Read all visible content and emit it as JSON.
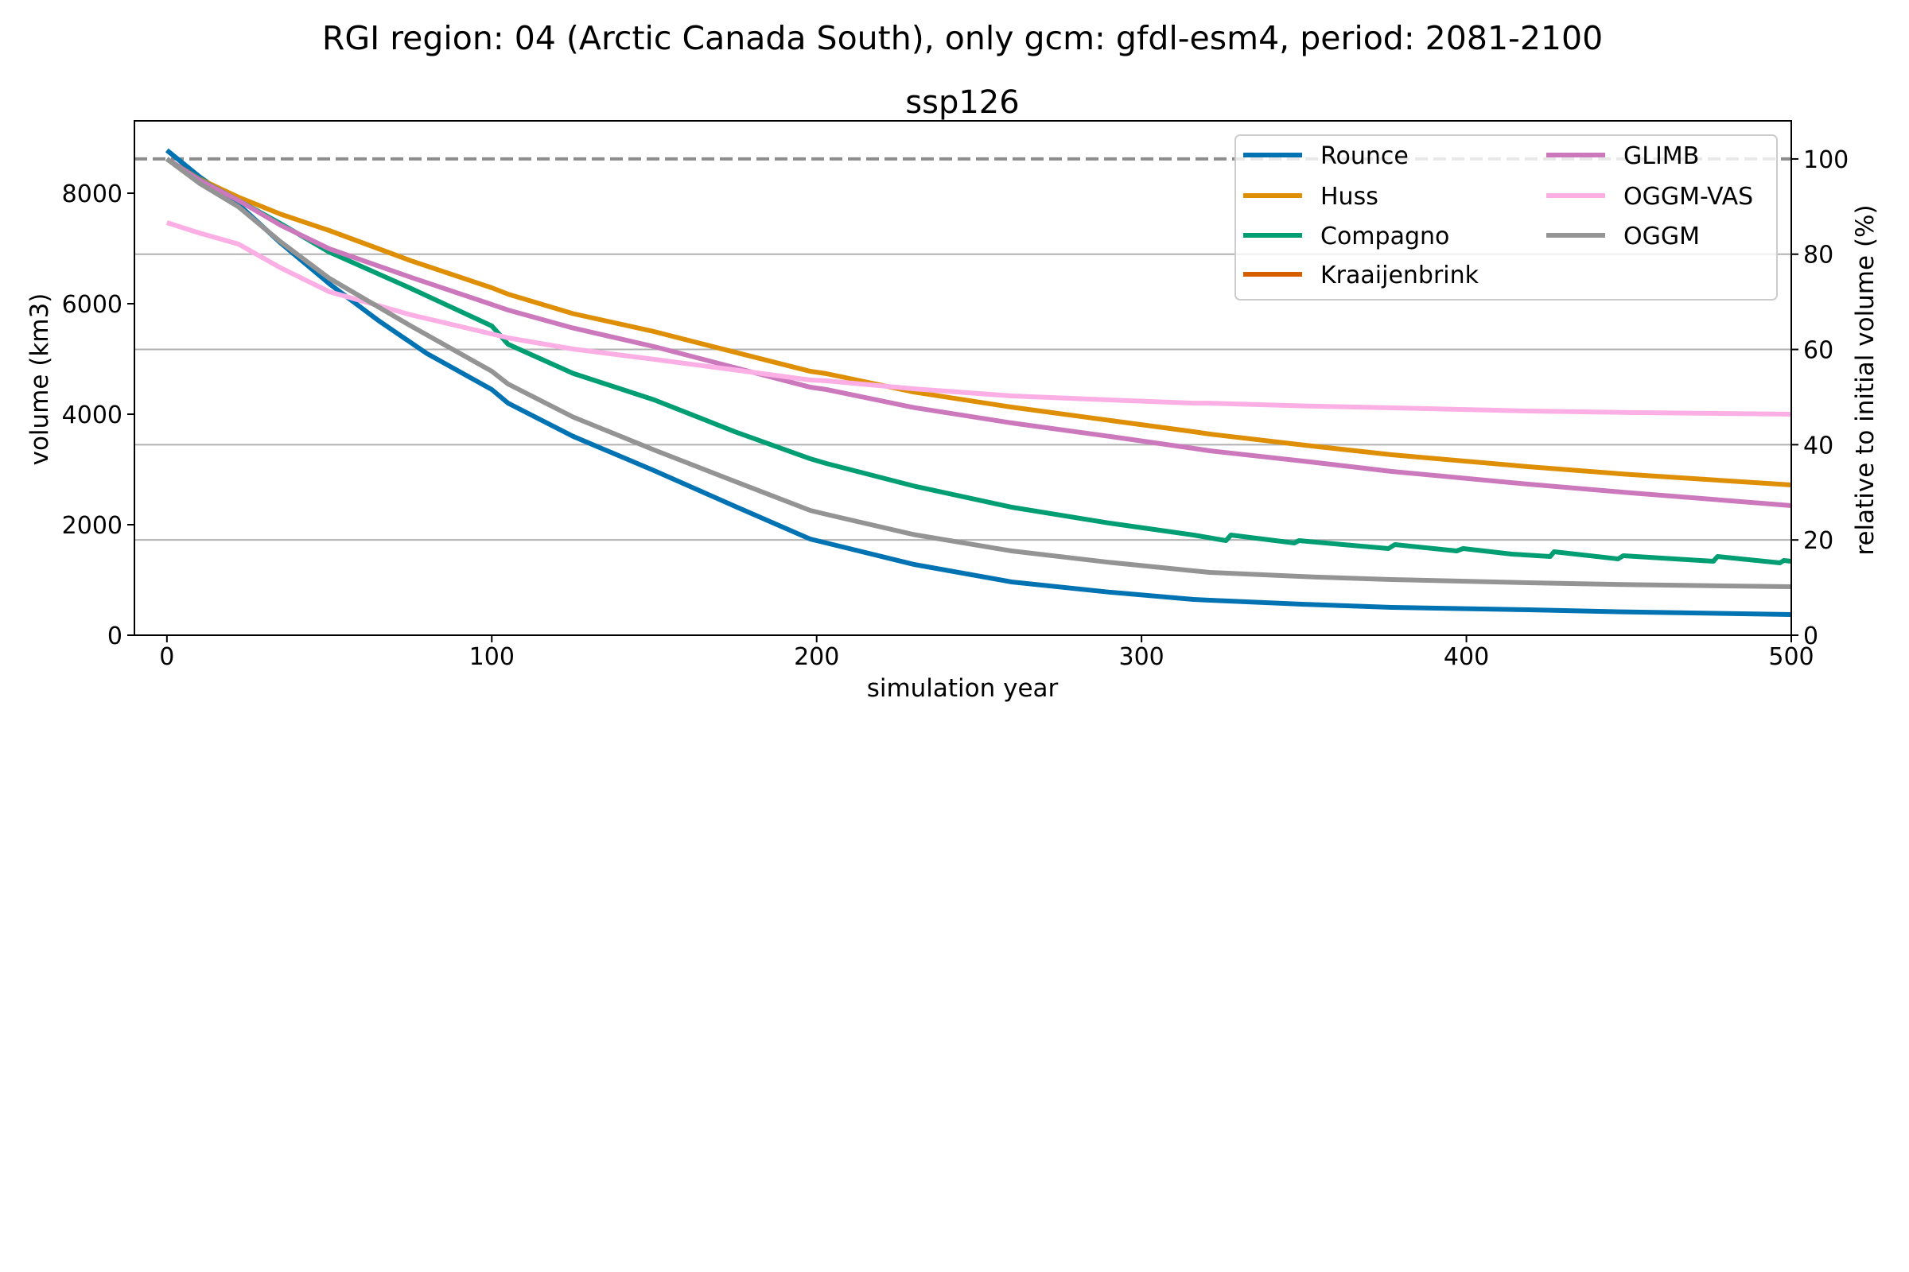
{
  "figure": {
    "suptitle": "RGI region: 04 (Arctic Canada South), only gcm: gfdl-esm4, period: 2081-2100",
    "background": "#ffffff"
  },
  "chart_data": {
    "type": "line",
    "title": "ssp126",
    "xlabel": "simulation year",
    "ylabel": "volume (km3)",
    "ylabel_right": "relative to initial volume (%)",
    "xlim": [
      -10,
      500
    ],
    "ylim": [
      0,
      9310
    ],
    "ylim_right": [
      0,
      108
    ],
    "initial_volume": 8620,
    "x_ticks": [
      0,
      100,
      200,
      300,
      400,
      500
    ],
    "x_tick_labels": [
      "0",
      "100",
      "200",
      "300",
      "400",
      "500"
    ],
    "y_ticks": [
      0,
      2000,
      4000,
      6000,
      8000
    ],
    "y_tick_labels": [
      "0",
      "2000",
      "4000",
      "6000",
      "8000"
    ],
    "y_right_ticks": [
      0,
      20,
      40,
      60,
      80,
      100
    ],
    "y_right_tick_labels": [
      "0",
      "20",
      "40",
      "60",
      "80",
      "100"
    ],
    "grid": "horizontal at right-axis ticks",
    "reference_line": {
      "value_percent": 100,
      "style": "dashed",
      "color": "#8c8c8c"
    },
    "legend_position": "upper-right",
    "legend_columns": 2,
    "series": [
      {
        "name": "Rounce",
        "color": "#0173b2",
        "x": [
          0,
          10,
          22,
          35,
          50,
          65,
          80,
          100,
          105,
          125,
          150,
          175,
          198,
          203,
          230,
          260,
          290,
          316,
          321,
          350,
          377,
          419,
          450,
          500
        ],
        "y": [
          8777,
          8300,
          7798,
          7100,
          6360,
          5700,
          5100,
          4446,
          4201,
          3600,
          2978,
          2330,
          1741,
          1669,
          1280,
          964,
          780,
          647,
          633,
          560,
          504,
          460,
          420,
          374
        ]
      },
      {
        "name": "Huss",
        "color": "#de8f05",
        "x": [
          0,
          10,
          22,
          35,
          50,
          75,
          100,
          105,
          125,
          150,
          175,
          198,
          203,
          230,
          260,
          290,
          316,
          321,
          350,
          377,
          419,
          450,
          500
        ],
        "y": [
          8620,
          8260,
          7928,
          7620,
          7324,
          6780,
          6288,
          6173,
          5820,
          5496,
          5120,
          4777,
          4734,
          4400,
          4129,
          3890,
          3683,
          3640,
          3440,
          3266,
          3050,
          2910,
          2719
        ]
      },
      {
        "name": "Compagno",
        "color": "#029e73",
        "x": [
          0,
          10,
          22,
          35,
          50,
          75,
          100,
          105,
          125,
          150,
          175,
          198,
          203,
          230,
          260,
          290,
          316,
          326,
          327.5,
          347,
          348.5,
          362,
          376,
          378,
          397,
          399,
          414,
          425.8,
          427,
          446.7,
          448.3,
          476,
          477.3,
          496.5,
          497.7,
          500
        ],
        "y": [
          8620,
          8250,
          7870,
          7450,
          6935,
          6280,
          5597,
          5266,
          4740,
          4259,
          3680,
          3194,
          3108,
          2700,
          2317,
          2030,
          1813,
          1712,
          1813,
          1669,
          1712,
          1640,
          1568,
          1640,
          1525,
          1568,
          1468,
          1424,
          1511,
          1381,
          1439,
          1338,
          1424,
          1309,
          1353,
          1338
        ]
      },
      {
        "name": "Kraaijenbrink",
        "color": "#d55e00",
        "x": [],
        "y": []
      },
      {
        "name": "GLIMB",
        "color": "#cc78bc",
        "x": [
          0,
          10,
          22,
          35,
          50,
          75,
          100,
          105,
          125,
          150,
          175,
          198,
          203,
          230,
          260,
          290,
          316,
          321,
          350,
          377,
          419,
          450,
          500
        ],
        "y": [
          8620,
          8240,
          7870,
          7420,
          6993,
          6480,
          5986,
          5885,
          5560,
          5223,
          4840,
          4489,
          4446,
          4120,
          3842,
          3600,
          3381,
          3338,
          3150,
          2964,
          2734,
          2580,
          2345
        ]
      },
      {
        "name": "OGGM-VAS",
        "color": "#fbafe4",
        "x": [
          0,
          10,
          22,
          35,
          50,
          75,
          100,
          105,
          125,
          150,
          175,
          198,
          203,
          230,
          260,
          290,
          316,
          321,
          350,
          377,
          419,
          450,
          500
        ],
        "y": [
          7468,
          7280,
          7079,
          6650,
          6216,
          5800,
          5453,
          5381,
          5180,
          4993,
          4800,
          4619,
          4604,
          4460,
          4331,
          4260,
          4201,
          4201,
          4150,
          4115,
          4058,
          4030,
          4000
        ]
      },
      {
        "name": "OGGM",
        "color": "#949494",
        "x": [
          0,
          10,
          22,
          35,
          50,
          75,
          100,
          105,
          125,
          150,
          175,
          198,
          203,
          230,
          260,
          290,
          316,
          321,
          350,
          377,
          419,
          450,
          500
        ],
        "y": [
          8620,
          8180,
          7755,
          7120,
          6460,
          5600,
          4777,
          4547,
          3950,
          3353,
          2780,
          2259,
          2187,
          1820,
          1525,
          1320,
          1165,
          1137,
          1060,
          1007,
          950,
          915,
          878
        ]
      }
    ]
  }
}
